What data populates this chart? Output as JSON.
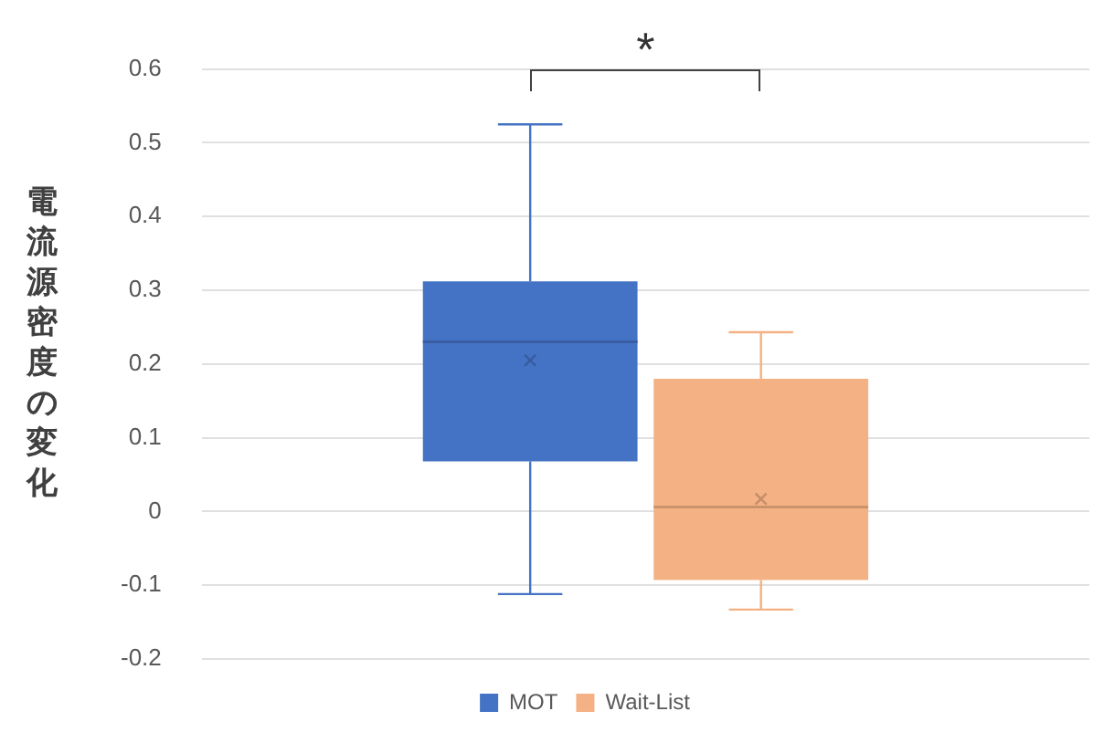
{
  "chart_data": {
    "type": "box",
    "categories": [
      null
    ],
    "series": [
      {
        "name": "MOT",
        "color": "#4472c4",
        "boxes": [
          {
            "low": -0.112,
            "q1": 0.068,
            "median": 0.23,
            "q3": 0.312,
            "high": 0.525,
            "mean": 0.205
          }
        ]
      },
      {
        "name": "Wait-List",
        "color": "#f4b183",
        "boxes": [
          {
            "low": -0.133,
            "q1": -0.093,
            "median": 0.006,
            "q3": 0.18,
            "high": 0.243,
            "mean": 0.017
          }
        ]
      }
    ],
    "ylabel": "電流源密度の変化",
    "ylim": [
      -0.2,
      0.6
    ],
    "yticks": [
      -0.2,
      -0.1,
      0,
      0.1,
      0.2,
      0.3,
      0.4,
      0.5,
      0.6
    ],
    "grid": "y",
    "legend": "bottom",
    "annotations": [
      "*"
    ]
  }
}
